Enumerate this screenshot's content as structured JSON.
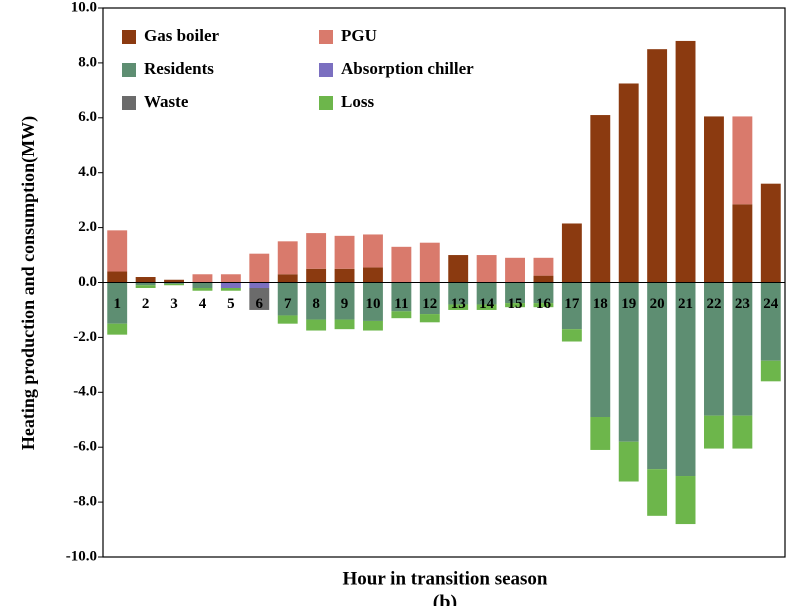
{
  "chart_data": {
    "type": "bar",
    "stacked": true,
    "xlabel": "Hour in transition season",
    "ylabel": "Heating production and consumption(MW)",
    "caption": "(b)",
    "categories": [
      "1",
      "2",
      "3",
      "4",
      "5",
      "6",
      "7",
      "8",
      "9",
      "10",
      "11",
      "12",
      "13",
      "14",
      "15",
      "16",
      "17",
      "18",
      "19",
      "20",
      "21",
      "22",
      "23",
      "24"
    ],
    "ylim": [
      -10,
      10
    ],
    "yticks": [
      {
        "value": -10,
        "label": "-10.0"
      },
      {
        "value": -8,
        "label": "-8.0"
      },
      {
        "value": -6,
        "label": "-6.0"
      },
      {
        "value": -4,
        "label": "-4.0"
      },
      {
        "value": -2,
        "label": "-2.0"
      },
      {
        "value": 0,
        "label": "0.0"
      },
      {
        "value": 2,
        "label": "2.0"
      },
      {
        "value": 4,
        "label": "4.0"
      },
      {
        "value": 6,
        "label": "6.0"
      },
      {
        "value": 8,
        "label": "8.0"
      },
      {
        "value": 10,
        "label": "10.0"
      }
    ],
    "legend": "upper left",
    "series": [
      {
        "name": "Gas boiler",
        "color": "#8b3a10",
        "values": [
          0.4,
          0.2,
          0.1,
          0,
          0,
          0,
          0.3,
          0.5,
          0.5,
          0.55,
          0,
          0,
          1.0,
          0,
          0,
          0.25,
          2.15,
          6.1,
          7.25,
          8.5,
          8.8,
          6.05,
          2.85,
          3.6
        ]
      },
      {
        "name": "PGU",
        "color": "#d97a6c",
        "values": [
          1.5,
          0,
          0,
          0.3,
          0.3,
          1.05,
          1.2,
          1.3,
          1.2,
          1.2,
          1.3,
          1.45,
          0,
          1.0,
          0.9,
          0.65,
          0,
          0,
          0,
          0,
          0,
          0,
          3.2,
          0
        ]
      },
      {
        "name": "Residents",
        "color": "#5e8e72",
        "values": [
          -1.5,
          -0.1,
          -0.05,
          -0.2,
          0,
          0,
          -1.2,
          -1.35,
          -1.35,
          -1.4,
          -1.05,
          -1.15,
          -0.8,
          -0.8,
          -0.75,
          -0.75,
          -1.7,
          -4.9,
          -5.8,
          -6.8,
          -7.05,
          -4.85,
          -4.85,
          -2.85
        ]
      },
      {
        "name": "Absorption chiller",
        "color": "#7b6fc0",
        "values": [
          0,
          0,
          0,
          0,
          -0.2,
          -0.2,
          0,
          0,
          0,
          0,
          0,
          0,
          0,
          0,
          0,
          0,
          0,
          0,
          0,
          0,
          0,
          0,
          0,
          0
        ]
      },
      {
        "name": "Waste",
        "color": "#6b6b6b",
        "values": [
          0,
          0,
          0,
          0,
          0,
          -0.8,
          0,
          0,
          0,
          0,
          0,
          0,
          0,
          0,
          0,
          0,
          0,
          0,
          0,
          0,
          0,
          0,
          0,
          0
        ]
      },
      {
        "name": "Loss",
        "color": "#6db64b",
        "values": [
          -0.4,
          -0.1,
          -0.05,
          -0.1,
          -0.1,
          0,
          -0.3,
          -0.4,
          -0.35,
          -0.35,
          -0.25,
          -0.3,
          -0.2,
          -0.2,
          -0.15,
          -0.15,
          -0.45,
          -1.2,
          -1.45,
          -1.7,
          -1.75,
          -1.2,
          -1.2,
          -0.75
        ]
      }
    ]
  }
}
